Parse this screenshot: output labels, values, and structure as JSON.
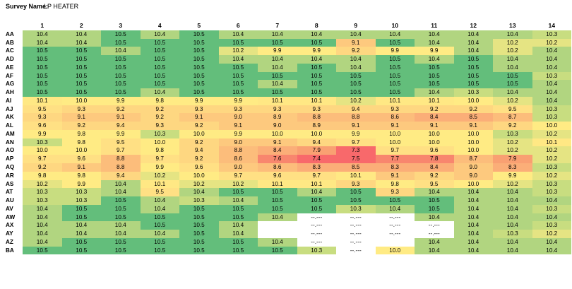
{
  "survey": {
    "label": "Survey Name:",
    "name": "LP HEATER"
  },
  "palette": {
    "na": "#ffffff",
    "stops": [
      [
        7.3,
        "#f8696b"
      ],
      [
        7.6,
        "#f8866e"
      ],
      [
        7.9,
        "#f9a072"
      ],
      [
        8.3,
        "#fbae78"
      ],
      [
        8.6,
        "#fcbd7b"
      ],
      [
        8.9,
        "#fdc97e"
      ],
      [
        9.2,
        "#fed781"
      ],
      [
        9.5,
        "#ffe084"
      ],
      [
        9.8,
        "#ffeb84"
      ],
      [
        10.1,
        "#ffe884"
      ],
      [
        10.2,
        "#e5e483"
      ],
      [
        10.3,
        "#c8dd80"
      ],
      [
        10.4,
        "#b1d580"
      ],
      [
        10.5,
        "#63be7b"
      ]
    ]
  },
  "grid": {
    "columns": [
      "1",
      "2",
      "3",
      "4",
      "5",
      "6",
      "7",
      "8",
      "9",
      "10",
      "11",
      "12",
      "13",
      "14"
    ],
    "rows": [
      {
        "label": "AA",
        "values": [
          "10.4",
          "10.4",
          "10.5",
          "10.4",
          "10.5",
          "10.4",
          "10.4",
          "10.4",
          "10.4",
          "10.4",
          "10.4",
          "10.4",
          "10.4",
          "10.3"
        ]
      },
      {
        "label": "AB",
        "values": [
          "10.4",
          "10.4",
          "10.5",
          "10.5",
          "10.5",
          "10.5",
          "10.5",
          "10.5",
          "9.1",
          "10.5",
          "10.4",
          "10.4",
          "10.2",
          "10.2"
        ]
      },
      {
        "label": "AC",
        "values": [
          "10.5",
          "10.5",
          "10.4",
          "10.5",
          "10.5",
          "10.2",
          "9.9",
          "9.9",
          "9.2",
          "9.9",
          "9.9",
          "10.4",
          "10.2",
          "10.4"
        ]
      },
      {
        "label": "AD",
        "values": [
          "10.5",
          "10.5",
          "10.5",
          "10.5",
          "10.5",
          "10.4",
          "10.4",
          "10.4",
          "10.4",
          "10.5",
          "10.4",
          "10.5",
          "10.4",
          "10.4"
        ]
      },
      {
        "label": "AE",
        "values": [
          "10.5",
          "10.5",
          "10.5",
          "10.5",
          "10.5",
          "10.5",
          "10.4",
          "10.5",
          "10.4",
          "10.5",
          "10.5",
          "10.5",
          "10.4",
          "10.4"
        ]
      },
      {
        "label": "AF",
        "values": [
          "10.5",
          "10.5",
          "10.5",
          "10.5",
          "10.5",
          "10.5",
          "10.5",
          "10.5",
          "10.5",
          "10.5",
          "10.5",
          "10.5",
          "10.5",
          "10.3"
        ]
      },
      {
        "label": "AG",
        "values": [
          "10.5",
          "10.5",
          "10.5",
          "10.5",
          "10.5",
          "10.5",
          "10.4",
          "10.5",
          "10.5",
          "10.5",
          "10.5",
          "10.5",
          "10.5",
          "10.4"
        ]
      },
      {
        "label": "AH",
        "values": [
          "10.5",
          "10.5",
          "10.5",
          "10.4",
          "10.5",
          "10.5",
          "10.5",
          "10.5",
          "10.5",
          "10.5",
          "10.4",
          "10.3",
          "10.4",
          "10.4"
        ]
      },
      {
        "label": "AI",
        "values": [
          "10.1",
          "10.0",
          "9.9",
          "9.8",
          "9.9",
          "9.9",
          "10.1",
          "10.1",
          "10.2",
          "10.1",
          "10.1",
          "10.0",
          "10.2",
          "10.4"
        ]
      },
      {
        "label": "AJ",
        "values": [
          "9.5",
          "9.3",
          "9.2",
          "9.2",
          "9.3",
          "9.3",
          "9.3",
          "9.3",
          "9.4",
          "9.3",
          "9.2",
          "9.2",
          "9.5",
          "10.3"
        ]
      },
      {
        "label": "AK",
        "values": [
          "9.3",
          "9.1",
          "9.1",
          "9.2",
          "9.1",
          "9.0",
          "8.9",
          "8.8",
          "8.8",
          "8.6",
          "8.4",
          "8.5",
          "8.7",
          "10.3"
        ]
      },
      {
        "label": "AL",
        "values": [
          "9.6",
          "9.2",
          "9.4",
          "9.3",
          "9.2",
          "9.1",
          "9.0",
          "8.9",
          "9.1",
          "9.1",
          "9.1",
          "9.1",
          "9.2",
          "10.0"
        ]
      },
      {
        "label": "AM",
        "values": [
          "9.9",
          "9.8",
          "9.9",
          "10.3",
          "10.0",
          "9.9",
          "10.0",
          "10.0",
          "9.9",
          "10.0",
          "10.0",
          "10.0",
          "10.3",
          "10.2"
        ]
      },
      {
        "label": "AN",
        "values": [
          "10.3",
          "9.8",
          "9.5",
          "10.0",
          "9.2",
          "9.0",
          "9.1",
          "9.4",
          "9.7",
          "10.0",
          "10.0",
          "10.0",
          "10.2",
          "10.1"
        ]
      },
      {
        "label": "AO",
        "values": [
          "10.0",
          "10.0",
          "9.7",
          "9.8",
          "9.4",
          "8.8",
          "8.4",
          "7.9",
          "7.3",
          "9.7",
          "9.6",
          "10.0",
          "10.2",
          "10.2"
        ]
      },
      {
        "label": "AP",
        "values": [
          "9.7",
          "9.6",
          "8.8",
          "9.7",
          "9.2",
          "8.6",
          "7.6",
          "7.4",
          "7.5",
          "7.7",
          "7.8",
          "8.7",
          "7.9",
          "10.2"
        ]
      },
      {
        "label": "AQ",
        "values": [
          "9.2",
          "9.1",
          "8.8",
          "9.9",
          "9.6",
          "9.0",
          "8.6",
          "8.3",
          "8.5",
          "8.3",
          "8.4",
          "9.0",
          "8.3",
          "10.3"
        ]
      },
      {
        "label": "AR",
        "values": [
          "9.8",
          "9.8",
          "9.4",
          "10.2",
          "10.0",
          "9.7",
          "9.6",
          "9.7",
          "10.1",
          "9.1",
          "9.2",
          "9.0",
          "9.9",
          "10.2"
        ]
      },
      {
        "label": "AS",
        "values": [
          "10.2",
          "9.9",
          "10.4",
          "10.1",
          "10.2",
          "10.2",
          "10.1",
          "10.1",
          "9.3",
          "9.8",
          "9.5",
          "10.0",
          "10.2",
          "10.3"
        ]
      },
      {
        "label": "AT",
        "values": [
          "10.3",
          "10.3",
          "10.4",
          "9.5",
          "10.4",
          "10.5",
          "10.5",
          "10.4",
          "10.5",
          "9.3",
          "10.4",
          "10.4",
          "10.4",
          "10.3"
        ]
      },
      {
        "label": "AU",
        "values": [
          "10.3",
          "10.3",
          "10.5",
          "10.4",
          "10.3",
          "10.4",
          "10.5",
          "10.5",
          "10.5",
          "10.5",
          "10.5",
          "10.4",
          "10.4",
          "10.4"
        ]
      },
      {
        "label": "AV",
        "values": [
          "10.4",
          "10.5",
          "10.5",
          "10.4",
          "10.5",
          "10.5",
          "10.5",
          "10.5",
          "10.3",
          "10.4",
          "10.5",
          "10.4",
          "10.4",
          "10.3"
        ]
      },
      {
        "label": "AW",
        "values": [
          "10.4",
          "10.5",
          "10.5",
          "10.5",
          "10.5",
          "10.5",
          "10.4",
          "--.---",
          "--.---",
          "--.---",
          "10.4",
          "10.4",
          "10.4",
          "10.4"
        ]
      },
      {
        "label": "AX",
        "values": [
          "10.4",
          "10.4",
          "10.4",
          "10.5",
          "10.5",
          "10.4",
          "",
          "--.---",
          "--.---",
          "--.---",
          "--.---",
          "10.4",
          "10.4",
          "10.3"
        ]
      },
      {
        "label": "AY",
        "values": [
          "10.4",
          "10.4",
          "10.4",
          "10.4",
          "10.5",
          "10.4",
          "",
          "--.---",
          "--.---",
          "--.---",
          "--.---",
          "10.4",
          "10.3",
          "10.2"
        ]
      },
      {
        "label": "AZ",
        "values": [
          "10.4",
          "10.5",
          "10.5",
          "10.5",
          "10.5",
          "10.5",
          "10.4",
          "--.---",
          "--.---",
          "",
          "10.4",
          "10.4",
          "10.4",
          "10.4"
        ]
      },
      {
        "label": "BA",
        "values": [
          "10.5",
          "10.5",
          "10.5",
          "10.5",
          "10.5",
          "10.5",
          "10.5",
          "10.3",
          "--.---",
          "10.0",
          "10.4",
          "10.4",
          "10.4",
          "10.4"
        ]
      }
    ]
  }
}
